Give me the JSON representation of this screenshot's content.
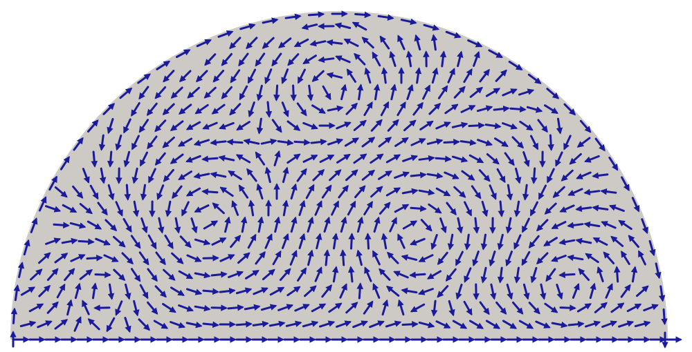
{
  "figure": {
    "kind": "vector-field",
    "shape": "half-disk",
    "colors": {
      "domain_fill": "#cdcac6",
      "arrow": "#1a1a9c",
      "background": "#ffffff"
    }
  }
}
